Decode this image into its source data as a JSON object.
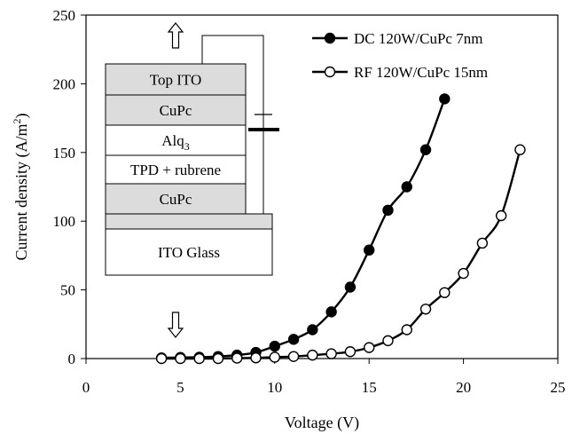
{
  "chart_data": {
    "type": "line",
    "xlabel": "Voltage (V)",
    "ylabel": "Current density (A/m²)",
    "ylabel_parts": {
      "main": "Current density (A/m",
      "sup": "2",
      "end": ")"
    },
    "xlim": [
      0,
      25
    ],
    "ylim": [
      0,
      250
    ],
    "x_ticks": [
      0,
      5,
      10,
      15,
      20,
      25
    ],
    "y_ticks": [
      0,
      50,
      100,
      150,
      200,
      250
    ],
    "grid": false,
    "legend_position": "top-right",
    "series": [
      {
        "name": "DC 120W/CuPc 7nm",
        "marker": "filled-circle",
        "color": "#000000",
        "x": [
          4,
          5,
          6,
          7,
          8,
          9,
          10,
          11,
          12,
          13,
          14,
          15,
          16,
          17,
          18,
          19
        ],
        "y": [
          0.5,
          0.8,
          1,
          1.5,
          2.5,
          4.5,
          9,
          14,
          21,
          34,
          52,
          79,
          108,
          125,
          152,
          189
        ]
      },
      {
        "name": "RF 120W/CuPc 15nm",
        "marker": "open-circle",
        "color": "#000000",
        "x": [
          4,
          5,
          6,
          7,
          8,
          9,
          10,
          11,
          12,
          13,
          14,
          15,
          16,
          17,
          18,
          19,
          20,
          21,
          22,
          23
        ],
        "y": [
          0,
          0,
          0,
          0,
          0.3,
          0.5,
          1,
          1.5,
          2.5,
          3.5,
          5,
          8,
          13,
          21,
          36,
          48,
          62,
          84,
          104,
          152
        ]
      }
    ],
    "inset": {
      "layers": [
        {
          "label": "Top ITO",
          "fill": "#dcdcdc"
        },
        {
          "label": "CuPc",
          "fill": "#dcdcdc"
        },
        {
          "label": "Alq",
          "sub": "3",
          "fill": "#ffffff"
        },
        {
          "label": "TPD + rubrene",
          "fill": "#ffffff"
        },
        {
          "label": "CuPc",
          "fill": "#dcdcdc"
        },
        {
          "label": "",
          "fill": "#dcdcdc"
        },
        {
          "label": "ITO Glass",
          "fill": "#ffffff"
        }
      ]
    }
  }
}
